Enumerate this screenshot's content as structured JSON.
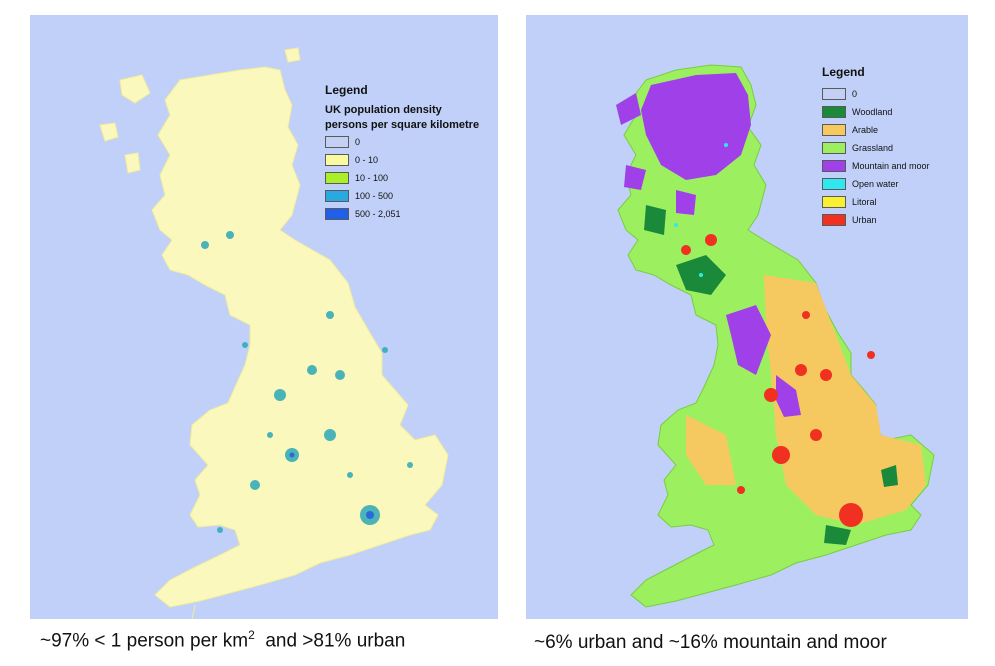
{
  "left_map": {
    "legend_title": "Legend",
    "legend_heading": "UK population density",
    "legend_subheading": "persons per square kilometre",
    "legend_items": [
      {
        "label": "0",
        "color": "#c3cff5"
      },
      {
        "label": "0 - 10",
        "color": "#fafaa0"
      },
      {
        "label": "10 - 100",
        "color": "#aaf028"
      },
      {
        "label": "100 - 500",
        "color": "#2aa8e0"
      },
      {
        "label": "500 - 2,051",
        "color": "#2060e8"
      }
    ],
    "land_color": "#fbf8bd",
    "sea_color": "#c0d0f8",
    "caption_part1": "~97% < 1 person per km",
    "caption_sup": "2",
    "caption_part2": "  and >81% urban"
  },
  "right_map": {
    "legend_title": "Legend",
    "legend_items": [
      {
        "label": "0",
        "color": "#c3cff5"
      },
      {
        "label": "Woodland",
        "color": "#1a8a3a"
      },
      {
        "label": "Arable",
        "color": "#f5c860"
      },
      {
        "label": "Grassland",
        "color": "#9cf060"
      },
      {
        "label": "Mountain and moor",
        "color": "#a040e8"
      },
      {
        "label": "Open water",
        "color": "#30e8f0"
      },
      {
        "label": "Litoral",
        "color": "#f8f030"
      },
      {
        "label": "Urban",
        "color": "#f03020"
      }
    ],
    "sea_color": "#c0d0f8",
    "caption": "~6% urban and ~16% mountain and moor"
  }
}
